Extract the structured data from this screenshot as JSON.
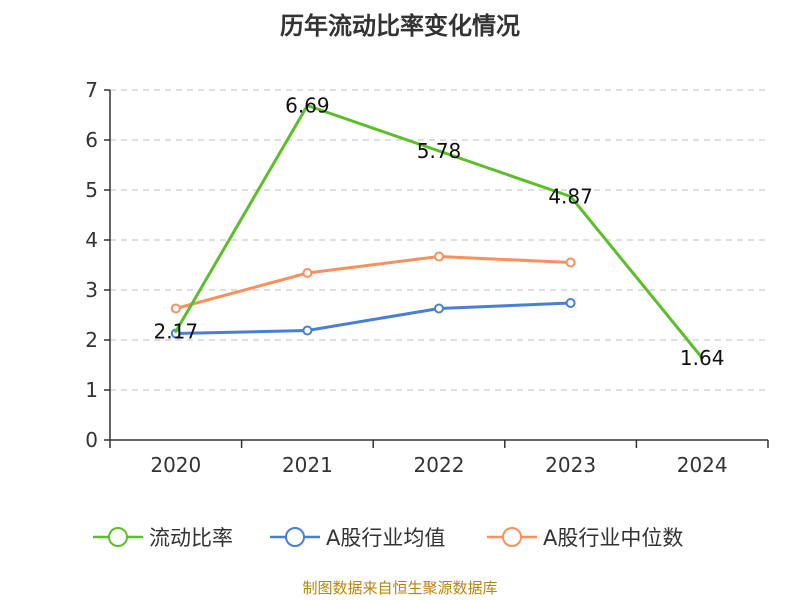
{
  "chart_data": {
    "type": "line",
    "title": "历年流动比率变化情况",
    "categories": [
      "2020",
      "2021",
      "2022",
      "2023",
      "2024"
    ],
    "ylim": [
      0,
      7
    ],
    "yticks": [
      0,
      1,
      2,
      3,
      4,
      5,
      6,
      7
    ],
    "grid": true,
    "legend_position": "bottom",
    "series": [
      {
        "name": "流动比率",
        "color": "#5cbf2a",
        "values": [
          2.17,
          6.69,
          5.78,
          4.87,
          1.64
        ],
        "labels": [
          "2.17",
          "6.69",
          "5.78",
          "4.87",
          "1.64"
        ],
        "show_markers": false
      },
      {
        "name": "A股行业均值",
        "color": "#4a7fd6",
        "values": [
          2.13,
          2.19,
          2.63,
          2.74,
          null
        ],
        "show_markers": true
      },
      {
        "name": "A股行业中位数",
        "color": "#f7915e",
        "values": [
          2.63,
          3.34,
          3.67,
          3.55,
          null
        ],
        "show_markers": true
      }
    ]
  },
  "source": "制图数据来自恒生聚源数据库"
}
